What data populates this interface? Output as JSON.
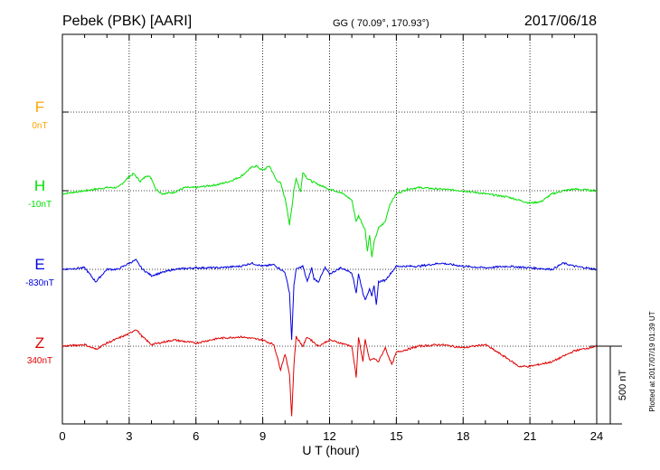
{
  "header": {
    "station": "Pebek (PBK)  [AARI]",
    "coords": "GG ( 70.09°, 170.93°)",
    "date": "2017/06/18"
  },
  "footer": {
    "plotted": "Plotted at 2017/07/19 01:39 UT"
  },
  "chart_data": {
    "type": "line",
    "title": "Pebek (PBK)  [AARI]",
    "xlabel": "U T (hour)",
    "ylabel": "",
    "xlim": [
      0,
      24
    ],
    "x_ticks": [
      0,
      3,
      6,
      9,
      12,
      15,
      18,
      21,
      24
    ],
    "x_tick_labels": [
      "0",
      "3",
      "6",
      "9",
      "12",
      "15",
      "18",
      "21",
      "24"
    ],
    "grid": true,
    "scale_bar_label": "500 nT",
    "scale_bar_nT": 500,
    "colors": {
      "F": "#ffa500",
      "H": "#00e000",
      "E": "#0000e0",
      "Z": "#e00000"
    },
    "series": [
      {
        "name": "F",
        "baseline_label": "0nT",
        "color": "#ffa500",
        "x": [],
        "values": []
      },
      {
        "name": "H",
        "baseline_label": "-10nT",
        "color": "#00e000",
        "x": [
          0,
          0.5,
          1,
          1.5,
          2,
          2.5,
          3,
          3.2,
          3.5,
          3.8,
          4,
          4.2,
          4.5,
          5,
          5.5,
          6,
          6.5,
          7,
          7.5,
          8,
          8.5,
          8.7,
          9,
          9.3,
          9.6,
          9.8,
          10,
          10.1,
          10.2,
          10.3,
          10.4,
          10.5,
          10.7,
          10.8,
          11,
          11.2,
          11.5,
          12,
          12.5,
          13,
          13.2,
          13.3,
          13.5,
          13.6,
          13.7,
          13.8,
          13.9,
          14,
          14.2,
          14.5,
          14.7,
          15,
          15.5,
          16,
          17,
          18,
          19,
          20,
          20.5,
          21,
          21.5,
          22,
          22.5,
          23,
          24
        ],
        "values": [
          -20,
          -10,
          0,
          10,
          20,
          20,
          90,
          110,
          60,
          100,
          80,
          10,
          -20,
          -10,
          20,
          20,
          30,
          40,
          60,
          90,
          150,
          160,
          130,
          160,
          70,
          50,
          -50,
          -120,
          -220,
          -120,
          10,
          80,
          -10,
          120,
          80,
          60,
          40,
          10,
          -10,
          -60,
          -200,
          -160,
          -220,
          -250,
          -390,
          -280,
          -430,
          -330,
          -240,
          -200,
          -90,
          -20,
          10,
          20,
          10,
          0,
          -20,
          -40,
          -60,
          -80,
          -70,
          -20,
          0,
          10,
          0
        ]
      },
      {
        "name": "E",
        "baseline_label": "-830nT",
        "color": "#0000e0",
        "x": [
          0,
          1,
          1.5,
          2,
          2.5,
          3,
          3.3,
          3.6,
          4,
          5,
          6,
          7,
          8,
          8.5,
          9,
          9.5,
          9.7,
          10,
          10.2,
          10.3,
          10.4,
          10.5,
          10.8,
          11,
          11.2,
          11.3,
          11.5,
          11.8,
          12,
          12.5,
          13,
          13.2,
          13.3,
          13.5,
          13.6,
          13.8,
          13.9,
          14,
          14.1,
          14.2,
          14.5,
          15,
          15.5,
          16,
          17,
          18,
          19,
          20,
          21,
          22,
          22.5,
          23,
          24
        ],
        "values": [
          0,
          10,
          -80,
          0,
          0,
          40,
          60,
          0,
          -40,
          0,
          10,
          10,
          20,
          40,
          20,
          30,
          10,
          -20,
          -150,
          -450,
          -100,
          0,
          20,
          -80,
          10,
          -60,
          -80,
          10,
          -30,
          10,
          -20,
          -150,
          -30,
          -150,
          -200,
          -120,
          -170,
          -110,
          -230,
          -80,
          -70,
          20,
          20,
          20,
          40,
          20,
          10,
          20,
          10,
          0,
          40,
          20,
          0
        ]
      },
      {
        "name": "Z",
        "baseline_label": "340nT",
        "color": "#e00000",
        "x": [
          0,
          1,
          1.5,
          2,
          3,
          3.3,
          3.6,
          4,
          5,
          6,
          7,
          8,
          9,
          9.5,
          9.8,
          10,
          10.2,
          10.3,
          10.4,
          10.5,
          10.8,
          11,
          11.5,
          12,
          12.5,
          13,
          13.2,
          13.3,
          13.5,
          13.6,
          13.8,
          14,
          14.2,
          14.5,
          14.8,
          15,
          15.5,
          16,
          17,
          18,
          19,
          20,
          20.5,
          21,
          22,
          23,
          24
        ],
        "values": [
          0,
          10,
          -20,
          20,
          80,
          110,
          60,
          10,
          40,
          20,
          50,
          60,
          40,
          10,
          -150,
          -50,
          -180,
          -450,
          -120,
          60,
          0,
          60,
          0,
          40,
          20,
          0,
          -200,
          60,
          -100,
          40,
          -90,
          -80,
          -100,
          -10,
          -120,
          -40,
          -20,
          0,
          10,
          -10,
          10,
          -80,
          -130,
          -130,
          -100,
          -30,
          0
        ]
      }
    ]
  }
}
